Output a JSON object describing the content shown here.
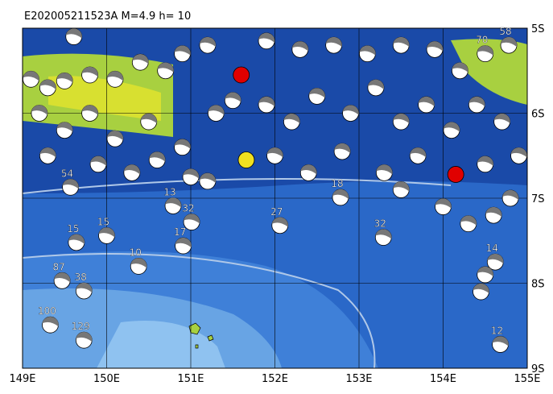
{
  "map": {
    "title": "E202005211523A M=4.9 h= 10",
    "xlim": [
      149,
      155
    ],
    "ylim": [
      -9,
      -5
    ],
    "xticks": [
      {
        "value": 149,
        "label": "149E"
      },
      {
        "value": 150,
        "label": "150E"
      },
      {
        "value": 151,
        "label": "151E"
      },
      {
        "value": 152,
        "label": "152E"
      },
      {
        "value": 153,
        "label": "153E"
      },
      {
        "value": 154,
        "label": "154E"
      },
      {
        "value": 155,
        "label": "155E"
      }
    ],
    "yticks": [
      {
        "value": -5,
        "label": "5S"
      },
      {
        "value": -6,
        "label": "6S"
      },
      {
        "value": -7,
        "label": "7S"
      },
      {
        "value": -8,
        "label": "8S"
      },
      {
        "value": -9,
        "label": "9S"
      }
    ],
    "events": [
      {
        "lon": 149.33,
        "lat": -8.49,
        "depth": 100
      },
      {
        "lon": 149.73,
        "lat": -8.67,
        "depth": 129
      },
      {
        "lon": 149.47,
        "lat": -7.97,
        "depth": 87
      },
      {
        "lon": 149.73,
        "lat": -8.09,
        "depth": 38
      },
      {
        "lon": 149.64,
        "lat": -7.52,
        "depth": 15
      },
      {
        "lon": 150.0,
        "lat": -7.44,
        "depth": 15
      },
      {
        "lon": 150.38,
        "lat": -7.8,
        "depth": 10
      },
      {
        "lon": 150.91,
        "lat": -7.56,
        "depth": 17
      },
      {
        "lon": 151.01,
        "lat": -7.28,
        "depth": 32
      },
      {
        "lon": 150.79,
        "lat": -7.09,
        "depth": 13
      },
      {
        "lon": 152.06,
        "lat": -7.32,
        "depth": 27
      },
      {
        "lon": 153.29,
        "lat": -7.46,
        "depth": 32
      },
      {
        "lon": 152.78,
        "lat": -6.99,
        "depth": 18
      },
      {
        "lon": 154.68,
        "lat": -8.72,
        "depth": 12
      },
      {
        "lon": 154.62,
        "lat": -7.75,
        "depth": 14
      },
      {
        "lon": 149.57,
        "lat": -6.87,
        "depth": 54
      },
      {
        "lon": 149.61,
        "lat": -5.1,
        "depth": null
      },
      {
        "lon": 154.78,
        "lat": -5.2,
        "depth": 58
      },
      {
        "lon": 154.5,
        "lat": -5.3,
        "depth": 70
      },
      {
        "lon": 151.6,
        "lat": -5.55,
        "depth": null,
        "color": "#e00000"
      },
      {
        "lon": 154.15,
        "lat": -6.72,
        "depth": null,
        "color": "#e00000"
      },
      {
        "lon": 151.66,
        "lat": -6.55,
        "depth": null,
        "color": "#f0e020"
      },
      {
        "lon": 149.1,
        "lat": -5.6,
        "depth": null
      },
      {
        "lon": 149.3,
        "lat": -5.7,
        "depth": null
      },
      {
        "lon": 149.5,
        "lat": -5.62,
        "depth": null
      },
      {
        "lon": 149.8,
        "lat": -5.55,
        "depth": null
      },
      {
        "lon": 150.1,
        "lat": -5.6,
        "depth": null
      },
      {
        "lon": 150.4,
        "lat": -5.4,
        "depth": null
      },
      {
        "lon": 150.7,
        "lat": -5.5,
        "depth": null
      },
      {
        "lon": 150.9,
        "lat": -5.3,
        "depth": null
      },
      {
        "lon": 151.2,
        "lat": -5.2,
        "depth": null
      },
      {
        "lon": 151.9,
        "lat": -5.15,
        "depth": null
      },
      {
        "lon": 152.3,
        "lat": -5.25,
        "depth": null
      },
      {
        "lon": 152.7,
        "lat": -5.2,
        "depth": null
      },
      {
        "lon": 153.1,
        "lat": -5.3,
        "depth": null
      },
      {
        "lon": 153.5,
        "lat": -5.2,
        "depth": null
      },
      {
        "lon": 153.9,
        "lat": -5.25,
        "depth": null
      },
      {
        "lon": 154.2,
        "lat": -5.5,
        "depth": null
      },
      {
        "lon": 149.2,
        "lat": -6.0,
        "depth": null
      },
      {
        "lon": 149.5,
        "lat": -6.2,
        "depth": null
      },
      {
        "lon": 149.8,
        "lat": -6.0,
        "depth": null
      },
      {
        "lon": 150.1,
        "lat": -6.3,
        "depth": null
      },
      {
        "lon": 150.5,
        "lat": -6.1,
        "depth": null
      },
      {
        "lon": 150.9,
        "lat": -6.4,
        "depth": null
      },
      {
        "lon": 151.3,
        "lat": -6.0,
        "depth": null
      },
      {
        "lon": 151.5,
        "lat": -5.85,
        "depth": null
      },
      {
        "lon": 151.9,
        "lat": -5.9,
        "depth": null
      },
      {
        "lon": 152.2,
        "lat": -6.1,
        "depth": null
      },
      {
        "lon": 152.5,
        "lat": -5.8,
        "depth": null
      },
      {
        "lon": 152.9,
        "lat": -6.0,
        "depth": null
      },
      {
        "lon": 153.2,
        "lat": -5.7,
        "depth": null
      },
      {
        "lon": 153.5,
        "lat": -6.1,
        "depth": null
      },
      {
        "lon": 153.8,
        "lat": -5.9,
        "depth": null
      },
      {
        "lon": 154.1,
        "lat": -6.2,
        "depth": null
      },
      {
        "lon": 154.4,
        "lat": -5.9,
        "depth": null
      },
      {
        "lon": 154.7,
        "lat": -6.1,
        "depth": null
      },
      {
        "lon": 154.9,
        "lat": -6.5,
        "depth": null
      },
      {
        "lon": 154.5,
        "lat": -6.6,
        "depth": null
      },
      {
        "lon": 149.3,
        "lat": -6.5,
        "depth": null
      },
      {
        "lon": 149.9,
        "lat": -6.6,
        "depth": null
      },
      {
        "lon": 150.3,
        "lat": -6.7,
        "depth": null
      },
      {
        "lon": 150.6,
        "lat": -6.55,
        "depth": null
      },
      {
        "lon": 151.0,
        "lat": -6.75,
        "depth": null
      },
      {
        "lon": 152.0,
        "lat": -6.5,
        "depth": null
      },
      {
        "lon": 152.4,
        "lat": -6.7,
        "depth": null
      },
      {
        "lon": 152.8,
        "lat": -6.45,
        "depth": null
      },
      {
        "lon": 153.3,
        "lat": -6.7,
        "depth": null
      },
      {
        "lon": 153.7,
        "lat": -6.5,
        "depth": null
      },
      {
        "lon": 154.0,
        "lat": -7.1,
        "depth": null
      },
      {
        "lon": 154.3,
        "lat": -7.3,
        "depth": null
      },
      {
        "lon": 154.6,
        "lat": -7.2,
        "depth": null
      },
      {
        "lon": 154.8,
        "lat": -7.0,
        "depth": null
      },
      {
        "lon": 154.5,
        "lat": -7.9,
        "depth": null
      },
      {
        "lon": 154.45,
        "lat": -8.1,
        "depth": null
      },
      {
        "lon": 153.5,
        "lat": -6.9,
        "depth": null
      },
      {
        "lon": 151.2,
        "lat": -6.8,
        "depth": null
      }
    ]
  }
}
